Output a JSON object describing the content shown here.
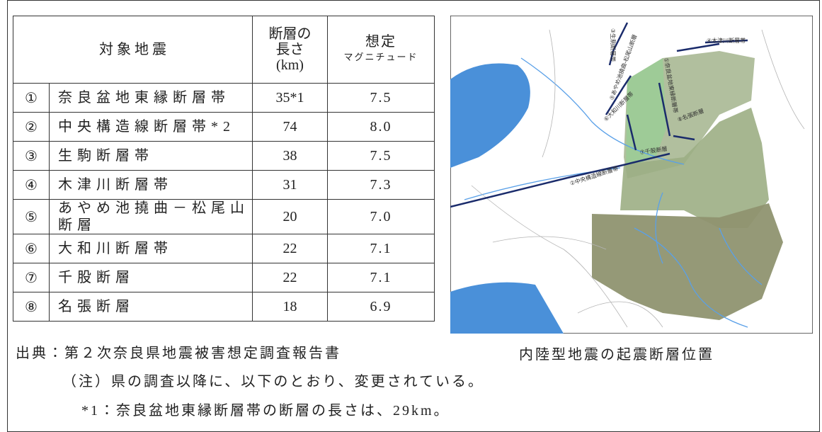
{
  "table": {
    "header": {
      "subject": "対 象 地 震",
      "length": [
        "断層の",
        "長さ",
        "(km)"
      ],
      "magnitude": [
        "想定",
        "マグニチュード"
      ]
    },
    "rows": [
      [
        "①",
        "奈良盆地東縁断層帯",
        "35*1",
        "7.5"
      ],
      [
        "②",
        "中央構造線断層帯*2",
        "74",
        "8.0"
      ],
      [
        "③",
        "生駒断層帯",
        "38",
        "7.5"
      ],
      [
        "④",
        "木津川断層帯",
        "31",
        "7.3"
      ],
      [
        "⑤",
        "あやめ池撓曲－松尾山断層",
        "20",
        "7.0"
      ],
      [
        "⑥",
        "大和川断層帯",
        "22",
        "7.1"
      ],
      [
        "⑦",
        "千股断層",
        "22",
        "7.1"
      ],
      [
        "⑧",
        "名張断層",
        "18",
        "6.9"
      ]
    ]
  },
  "source": "出典：第２次奈良県地震被害想定調査報告書",
  "map": {
    "caption": "内陸型地震の起震断層位置",
    "labels": [
      "①奈良盆地東縁断層帯",
      "②中央構造線断層帯",
      "③生駒断層帯",
      "④木津川断層帯",
      "⑤あやめ池撓曲-松尾山断層",
      "⑥大和川断層帯",
      "⑦千股断層",
      "⑧名張断層"
    ]
  },
  "notes": [
    "（注）県の調査以降に、以下のとおり、変更されている。",
    "*1：奈良盆地東縁断層帯の断層の長さは、29km。"
  ]
}
